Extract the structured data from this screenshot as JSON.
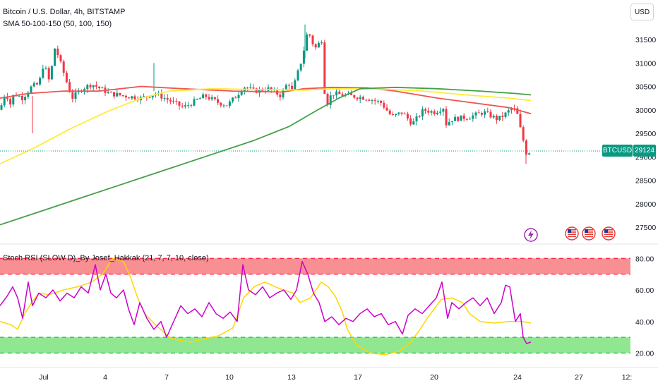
{
  "header": {
    "title": "Bitcoin / U.S. Dollar, 4h, BITSTAMP",
    "indicator": "SMA 50-100-150 (50, 100, 150)",
    "currency_button": "USD"
  },
  "stoch": {
    "title": "Stoch RSI (SLOW D)_By Josef_Hakkak (21, 7, 7, 10, close)"
  },
  "price_axis": {
    "ticks": [
      "31500",
      "31000",
      "30500",
      "30000",
      "29500",
      "29000",
      "28500",
      "28000",
      "27500"
    ]
  },
  "stoch_axis": {
    "ticks": [
      "80.00",
      "60.00",
      "40.00",
      "20.00"
    ]
  },
  "time_axis": {
    "ticks": [
      "Jul",
      "4",
      "7",
      "10",
      "13",
      "17",
      "20",
      "24",
      "27",
      "12:"
    ]
  },
  "last_price": {
    "symbol": "BTCUSD",
    "value": "29124",
    "color": "#089981"
  },
  "colors": {
    "up": "#089981",
    "down": "#f23645",
    "sma50": "#ef5350",
    "sma100": "#ffeb3b",
    "sma150": "#43a047",
    "stoch_k": "#cc00cc",
    "stoch_d": "#ffd600",
    "overbought_band": "#f77c80",
    "oversold_band": "#7ee37e"
  },
  "events": {
    "icons": [
      "lightning-event-icon",
      "us-flag-event-icon",
      "us-flag-event-icon",
      "us-flag-event-icon"
    ]
  }
}
